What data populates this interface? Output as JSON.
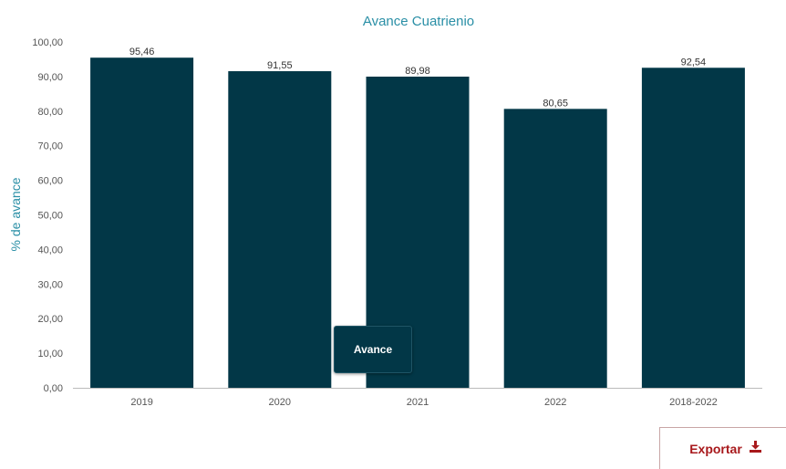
{
  "chart_data": {
    "type": "bar",
    "title": "Avance Cuatrienio",
    "xlabel": "",
    "ylabel": "% de avance",
    "categories": [
      "2019",
      "2020",
      "2021",
      "2022",
      "2018-2022"
    ],
    "series": [
      {
        "name": "Avance",
        "values": [
          95.46,
          91.55,
          89.98,
          80.65,
          92.54
        ]
      }
    ],
    "data_labels": [
      "95,46",
      "91,55",
      "89,98",
      "80,65",
      "92,54"
    ],
    "ylim": [
      0,
      100
    ],
    "y_ticks": [
      0,
      10,
      20,
      30,
      40,
      50,
      60,
      70,
      80,
      90,
      100
    ],
    "y_tick_labels": [
      "0,00",
      "10,00",
      "20,00",
      "30,00",
      "40,00",
      "50,00",
      "60,00",
      "70,00",
      "80,00",
      "90,00",
      "100,00"
    ],
    "grid": false,
    "legend_position": "bottom-center",
    "colors": {
      "bar": "#023747",
      "title": "#2a8fa6",
      "axis_label": "#2a8fa6",
      "axis_line": "#bbbbbb"
    }
  },
  "export": {
    "label": "Exportar",
    "icon": "download-icon",
    "color": "#a8191c"
  }
}
